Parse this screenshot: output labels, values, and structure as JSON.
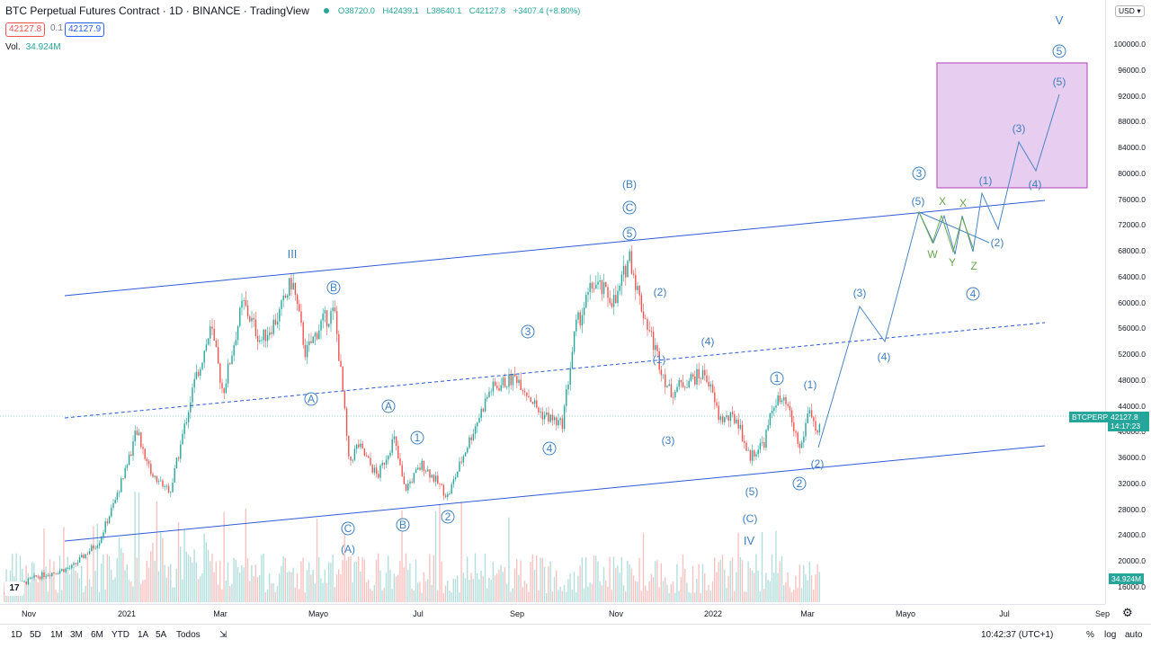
{
  "header": {
    "title": "BTC Perpetual Futures Contract · 1D · BINANCE · TradingView",
    "ohlc": {
      "o": "O38720.0",
      "h": "H42439.1",
      "l": "L38640.1",
      "c": "C42127.8",
      "change": "+3407.4 (+8.80%)"
    }
  },
  "trade": {
    "sell": "42127.8",
    "spread": "0.1",
    "buy": "42127.9"
  },
  "volume": {
    "label": "Vol.",
    "value": "34.924M"
  },
  "currency": "USD",
  "price_axis": {
    "ticks": [
      "100000.0",
      "96000.0",
      "92000.0",
      "88000.0",
      "84000.0",
      "80000.0",
      "76000.0",
      "72000.0",
      "68000.0",
      "64000.0",
      "60000.0",
      "56000.0",
      "52000.0",
      "48000.0",
      "44000.0",
      "40000.0",
      "36000.0",
      "32000.0",
      "28000.0",
      "24000.0",
      "20000.0",
      "16000.0"
    ],
    "symbol_tag": "BTCPERP",
    "price_tag": "42127.8",
    "countdown": "14:17:23",
    "vol_tag": "34.924M"
  },
  "time_axis": [
    "Nov",
    "2021",
    "Mar",
    "Mayo",
    "Jul",
    "Sep",
    "Nov",
    "2022",
    "Mar",
    "Mayo",
    "Jul",
    "Sep"
  ],
  "toolbar": {
    "ranges": [
      "1D",
      "5D",
      "1M",
      "3M",
      "6M",
      "YTD",
      "1A",
      "5A",
      "Todos"
    ],
    "clock": "10:42:37 (UTC+1)",
    "pct": "%",
    "log": "log",
    "auto": "auto"
  },
  "colors": {
    "up": "#26a69a",
    "down": "#ef5350",
    "wave": "#3f7fc0",
    "line": "#2e5bd6",
    "green_wave": "#6aa84f",
    "box_fill": "#e7cdef",
    "box_border": "#b040b8"
  },
  "wave_labels": [
    {
      "t": "III",
      "style": "plain"
    },
    {
      "t": "B",
      "style": "circle"
    },
    {
      "t": "A",
      "style": "circle"
    },
    {
      "t": "A",
      "style": "circle"
    },
    {
      "t": "1",
      "style": "circle"
    },
    {
      "t": "C",
      "style": "circle"
    },
    {
      "t": "(A)",
      "style": "plain"
    },
    {
      "t": "B",
      "style": "circle"
    },
    {
      "t": "2",
      "style": "circle"
    },
    {
      "t": "3",
      "style": "circle"
    },
    {
      "t": "4",
      "style": "circle"
    },
    {
      "t": "(B)",
      "style": "plain"
    },
    {
      "t": "C",
      "style": "circle"
    },
    {
      "t": "5",
      "style": "circle"
    },
    {
      "t": "(2)",
      "style": "plain"
    },
    {
      "t": "(1)",
      "style": "plain"
    },
    {
      "t": "(4)",
      "style": "plain"
    },
    {
      "t": "(3)",
      "style": "plain"
    },
    {
      "t": "(5)",
      "style": "plain"
    },
    {
      "t": "(C)",
      "style": "plain"
    },
    {
      "t": "IV",
      "style": "plain"
    },
    {
      "t": "1",
      "style": "circle"
    },
    {
      "t": "(1)",
      "style": "plain"
    },
    {
      "t": "2",
      "style": "circle"
    },
    {
      "t": "(2)",
      "style": "plain"
    },
    {
      "t": "(3)",
      "style": "plain"
    },
    {
      "t": "(4)",
      "style": "plain"
    },
    {
      "t": "(5)",
      "style": "plain"
    },
    {
      "t": "3",
      "style": "circle"
    },
    {
      "t": "W",
      "style": "green"
    },
    {
      "t": "X",
      "style": "green"
    },
    {
      "t": "Y",
      "style": "green"
    },
    {
      "t": "X",
      "style": "green"
    },
    {
      "t": "Z",
      "style": "green"
    },
    {
      "t": "4",
      "style": "circle"
    },
    {
      "t": "(1)",
      "style": "plain"
    },
    {
      "t": "(2)",
      "style": "plain"
    },
    {
      "t": "(3)",
      "style": "plain"
    },
    {
      "t": "(4)",
      "style": "plain"
    },
    {
      "t": "(5)",
      "style": "plain"
    },
    {
      "t": "5",
      "style": "circle"
    },
    {
      "t": "V",
      "style": "plain"
    }
  ]
}
